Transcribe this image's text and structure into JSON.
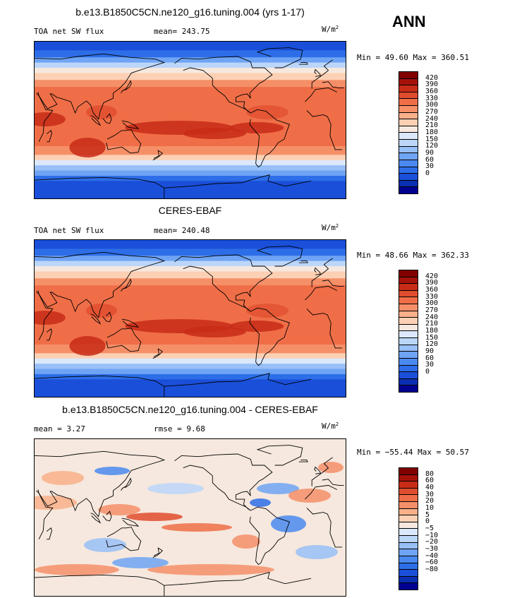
{
  "season": "ANN",
  "colors": {
    "abs_scale": [
      "#000090",
      "#0a2fb0",
      "#1a4fd9",
      "#2d6ee8",
      "#4a8af0",
      "#6fa4f4",
      "#98c0f7",
      "#bcd6fa",
      "#dbe8fb",
      "#f6e8de",
      "#fcd0b4",
      "#f9b08a",
      "#f58f68",
      "#ef6e47",
      "#e04c2e",
      "#c82c17",
      "#a5120a",
      "#800000"
    ],
    "diff_scale": [
      "#000090",
      "#0a2fb0",
      "#1a4fd9",
      "#2d6ee8",
      "#4a8af0",
      "#6fa4f4",
      "#98c0f7",
      "#bcd6fa",
      "#dbe8fb",
      "#f6e8de",
      "#fcd0b4",
      "#f9b08a",
      "#f58f68",
      "#ef6e47",
      "#e04c2e",
      "#c82c17",
      "#a5120a",
      "#800000"
    ],
    "land_outline": "#000000"
  },
  "panels": [
    {
      "id": "model",
      "title": "b.e13.B1850C5CN.ne120_g16.tuning.004 (yrs 1-17)",
      "left_text": "TOA net SW flux",
      "mid_text": "mean= 243.75",
      "units_main": "W/m",
      "units_sup": "2",
      "minmax": "Min =  49.60 Max = 360.51",
      "levels": [
        "420",
        "390",
        "360",
        "330",
        "300",
        "270",
        "240",
        "210",
        "180",
        "150",
        "120",
        "90",
        "60",
        "30",
        "0"
      ]
    },
    {
      "id": "obs",
      "title": "CERES-EBAF",
      "left_text": "TOA net SW flux",
      "mid_text": "mean= 240.48",
      "units_main": "W/m",
      "units_sup": "2",
      "minmax": "Min =  48.66 Max = 362.33",
      "levels": [
        "420",
        "390",
        "360",
        "330",
        "300",
        "270",
        "240",
        "210",
        "180",
        "150",
        "120",
        "90",
        "60",
        "30",
        "0"
      ]
    },
    {
      "id": "diff",
      "title": "b.e13.B1850C5CN.ne120_g16.tuning.004 - CERES-EBAF",
      "left_text": "mean =   3.27",
      "mid_text": "rmse =   9.68",
      "units_main": "W/m",
      "units_sup": "2",
      "minmax": "Min = −55.44 Max =  50.57",
      "levels": [
        "80",
        "60",
        "40",
        "30",
        "20",
        "10",
        "5",
        "0",
        "−5",
        "−10",
        "−20",
        "−30",
        "−40",
        "−60",
        "−80"
      ]
    }
  ]
}
